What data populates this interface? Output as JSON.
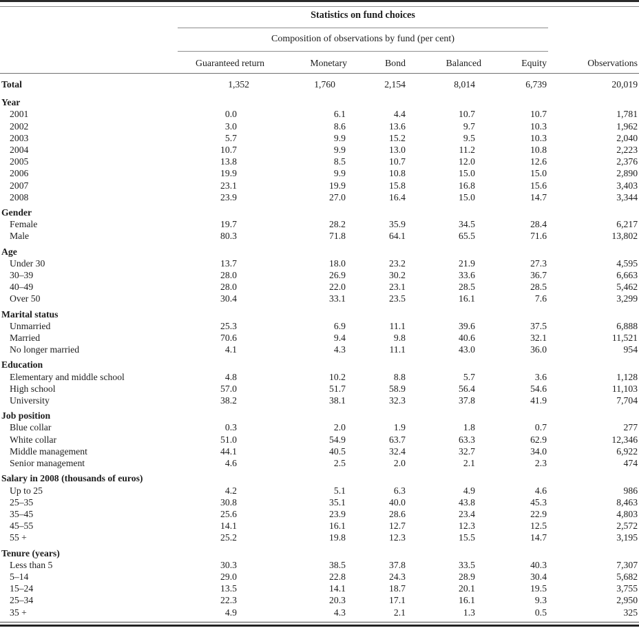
{
  "table": {
    "spanner_title": "Statistics on fund choices",
    "spanner_subtitle": "Composition of observations by fund (per cent)",
    "columns": [
      "Guaranteed return",
      "Monetary",
      "Bond",
      "Balanced",
      "Equity",
      "Observations"
    ],
    "total_row": {
      "label": "Total",
      "values": [
        "1,352",
        "1,760",
        "2,154",
        "8,014",
        "6,739",
        "20,019"
      ]
    },
    "sections": [
      {
        "header": "Year",
        "rows": [
          {
            "label": "2001",
            "values": [
              "0.0",
              "6.1",
              "4.4",
              "10.7",
              "10.7",
              "1,781"
            ]
          },
          {
            "label": "2002",
            "values": [
              "3.0",
              "8.6",
              "13.6",
              "9.7",
              "10.3",
              "1,962"
            ]
          },
          {
            "label": "2003",
            "values": [
              "5.7",
              "9.9",
              "15.2",
              "9.5",
              "10.3",
              "2,040"
            ]
          },
          {
            "label": "2004",
            "values": [
              "10.7",
              "9.9",
              "13.0",
              "11.2",
              "10.8",
              "2,223"
            ]
          },
          {
            "label": "2005",
            "values": [
              "13.8",
              "8.5",
              "10.7",
              "12.0",
              "12.6",
              "2,376"
            ]
          },
          {
            "label": "2006",
            "values": [
              "19.9",
              "9.9",
              "10.8",
              "15.0",
              "15.0",
              "2,890"
            ]
          },
          {
            "label": "2007",
            "values": [
              "23.1",
              "19.9",
              "15.8",
              "16.8",
              "15.6",
              "3,403"
            ]
          },
          {
            "label": "2008",
            "values": [
              "23.9",
              "27.0",
              "16.4",
              "15.0",
              "14.7",
              "3,344"
            ]
          }
        ]
      },
      {
        "header": "Gender",
        "rows": [
          {
            "label": "Female",
            "values": [
              "19.7",
              "28.2",
              "35.9",
              "34.5",
              "28.4",
              "6,217"
            ]
          },
          {
            "label": "Male",
            "values": [
              "80.3",
              "71.8",
              "64.1",
              "65.5",
              "71.6",
              "13,802"
            ]
          }
        ]
      },
      {
        "header": "Age",
        "rows": [
          {
            "label": "Under 30",
            "values": [
              "13.7",
              "18.0",
              "23.2",
              "21.9",
              "27.3",
              "4,595"
            ]
          },
          {
            "label": "30–39",
            "values": [
              "28.0",
              "26.9",
              "30.2",
              "33.6",
              "36.7",
              "6,663"
            ]
          },
          {
            "label": "40–49",
            "values": [
              "28.0",
              "22.0",
              "23.1",
              "28.5",
              "28.5",
              "5,462"
            ]
          },
          {
            "label": "Over 50",
            "values": [
              "30.4",
              "33.1",
              "23.5",
              "16.1",
              "7.6",
              "3,299"
            ]
          }
        ]
      },
      {
        "header": "Marital status",
        "rows": [
          {
            "label": "Unmarried",
            "values": [
              "25.3",
              "6.9",
              "11.1",
              "39.6",
              "37.5",
              "6,888"
            ]
          },
          {
            "label": "Married",
            "values": [
              "70.6",
              "9.4",
              "9.8",
              "40.6",
              "32.1",
              "11,521"
            ]
          },
          {
            "label": "No longer married",
            "values": [
              "4.1",
              "4.3",
              "11.1",
              "43.0",
              "36.0",
              "954"
            ]
          }
        ]
      },
      {
        "header": "Education",
        "rows": [
          {
            "label": "Elementary and middle school",
            "values": [
              "4.8",
              "10.2",
              "8.8",
              "5.7",
              "3.6",
              "1,128"
            ]
          },
          {
            "label": "High school",
            "values": [
              "57.0",
              "51.7",
              "58.9",
              "56.4",
              "54.6",
              "11,103"
            ]
          },
          {
            "label": "University",
            "values": [
              "38.2",
              "38.1",
              "32.3",
              "37.8",
              "41.9",
              "7,704"
            ]
          }
        ]
      },
      {
        "header": "Job position",
        "rows": [
          {
            "label": "Blue collar",
            "values": [
              "0.3",
              "2.0",
              "1.9",
              "1.8",
              "0.7",
              "277"
            ]
          },
          {
            "label": "White collar",
            "values": [
              "51.0",
              "54.9",
              "63.7",
              "63.3",
              "62.9",
              "12,346"
            ]
          },
          {
            "label": "Middle management",
            "values": [
              "44.1",
              "40.5",
              "32.4",
              "32.7",
              "34.0",
              "6,922"
            ]
          },
          {
            "label": "Senior management",
            "values": [
              "4.6",
              "2.5",
              "2.0",
              "2.1",
              "2.3",
              "474"
            ]
          }
        ]
      },
      {
        "header": "Salary in 2008 (thousands of euros)",
        "rows": [
          {
            "label": "Up to 25",
            "values": [
              "4.2",
              "5.1",
              "6.3",
              "4.9",
              "4.6",
              "986"
            ]
          },
          {
            "label": "25–35",
            "values": [
              "30.8",
              "35.1",
              "40.0",
              "43.8",
              "45.3",
              "8,463"
            ]
          },
          {
            "label": "35–45",
            "values": [
              "25.6",
              "23.9",
              "28.6",
              "23.4",
              "22.9",
              "4,803"
            ]
          },
          {
            "label": "45–55",
            "values": [
              "14.1",
              "16.1",
              "12.7",
              "12.3",
              "12.5",
              "2,572"
            ]
          },
          {
            "label": "55 +",
            "values": [
              "25.2",
              "19.8",
              "12.3",
              "15.5",
              "14.7",
              "3,195"
            ]
          }
        ]
      },
      {
        "header": "Tenure (years)",
        "rows": [
          {
            "label": "Less than 5",
            "values": [
              "30.3",
              "38.5",
              "37.8",
              "33.5",
              "40.3",
              "7,307"
            ]
          },
          {
            "label": "5–14",
            "values": [
              "29.0",
              "22.8",
              "24.3",
              "28.9",
              "30.4",
              "5,682"
            ]
          },
          {
            "label": "15–24",
            "values": [
              "13.5",
              "14.1",
              "18.7",
              "20.1",
              "19.5",
              "3,755"
            ]
          },
          {
            "label": "25–34",
            "values": [
              "22.3",
              "20.3",
              "17.1",
              "16.1",
              "9.3",
              "2,950"
            ]
          },
          {
            "label": "35 +",
            "values": [
              "4.9",
              "4.3",
              "2.1",
              "1.3",
              "0.5",
              "325"
            ]
          }
        ]
      }
    ]
  }
}
